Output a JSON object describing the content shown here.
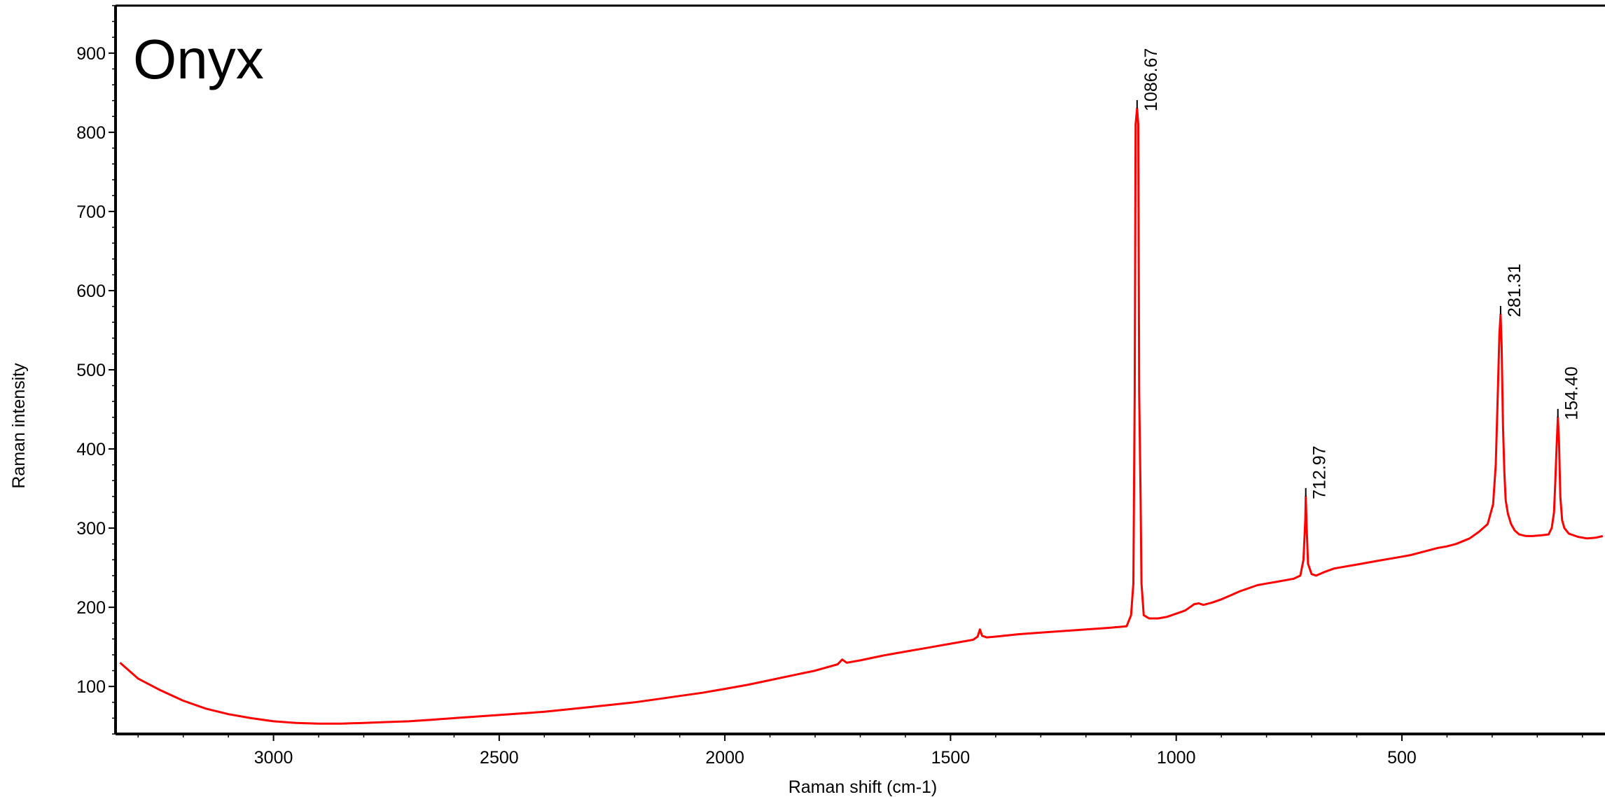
{
  "chart_data": {
    "type": "line",
    "title": "Onyx",
    "xlabel": "Raman shift (cm-1)",
    "ylabel": "Raman intensity",
    "xlim": [
      3350,
      50
    ],
    "ylim": [
      40,
      960
    ],
    "x_reversed": true,
    "grid": false,
    "legend": "none",
    "series_color": "#ff0000",
    "x_ticks": [
      3000,
      2500,
      2000,
      1500,
      1000,
      500
    ],
    "y_ticks": [
      100,
      200,
      300,
      400,
      500,
      600,
      700,
      800,
      900
    ],
    "series": [
      {
        "points": [
          [
            3340,
            130
          ],
          [
            3300,
            110
          ],
          [
            3250,
            95
          ],
          [
            3200,
            82
          ],
          [
            3150,
            72
          ],
          [
            3100,
            65
          ],
          [
            3050,
            60
          ],
          [
            3000,
            56
          ],
          [
            2950,
            54
          ],
          [
            2900,
            53
          ],
          [
            2850,
            53
          ],
          [
            2800,
            54
          ],
          [
            2750,
            55
          ],
          [
            2700,
            56
          ],
          [
            2650,
            58
          ],
          [
            2600,
            60
          ],
          [
            2550,
            62
          ],
          [
            2500,
            64
          ],
          [
            2450,
            66
          ],
          [
            2400,
            68
          ],
          [
            2350,
            71
          ],
          [
            2300,
            74
          ],
          [
            2250,
            77
          ],
          [
            2200,
            80
          ],
          [
            2150,
            84
          ],
          [
            2100,
            88
          ],
          [
            2050,
            92
          ],
          [
            2000,
            97
          ],
          [
            1950,
            102
          ],
          [
            1900,
            108
          ],
          [
            1850,
            114
          ],
          [
            1800,
            120
          ],
          [
            1750,
            128
          ],
          [
            1740,
            134
          ],
          [
            1730,
            130
          ],
          [
            1700,
            133
          ],
          [
            1650,
            139
          ],
          [
            1600,
            144
          ],
          [
            1550,
            149
          ],
          [
            1500,
            154
          ],
          [
            1450,
            159
          ],
          [
            1440,
            163
          ],
          [
            1435,
            172
          ],
          [
            1430,
            164
          ],
          [
            1420,
            162
          ],
          [
            1400,
            163
          ],
          [
            1350,
            166
          ],
          [
            1300,
            168
          ],
          [
            1250,
            170
          ],
          [
            1200,
            172
          ],
          [
            1150,
            174
          ],
          [
            1110,
            176
          ],
          [
            1100,
            190
          ],
          [
            1095,
            230
          ],
          [
            1092,
            470
          ],
          [
            1090,
            810
          ],
          [
            1086.67,
            830
          ],
          [
            1084,
            810
          ],
          [
            1082,
            470
          ],
          [
            1079,
            340
          ],
          [
            1077,
            230
          ],
          [
            1072,
            190
          ],
          [
            1060,
            186
          ],
          [
            1040,
            186
          ],
          [
            1020,
            188
          ],
          [
            1000,
            192
          ],
          [
            980,
            196
          ],
          [
            960,
            204
          ],
          [
            950,
            205
          ],
          [
            940,
            203
          ],
          [
            920,
            206
          ],
          [
            900,
            210
          ],
          [
            880,
            215
          ],
          [
            860,
            220
          ],
          [
            840,
            224
          ],
          [
            820,
            228
          ],
          [
            800,
            230
          ],
          [
            780,
            232
          ],
          [
            760,
            234
          ],
          [
            740,
            236
          ],
          [
            725,
            240
          ],
          [
            718,
            260
          ],
          [
            714,
            310
          ],
          [
            712.97,
            340
          ],
          [
            711,
            300
          ],
          [
            708,
            255
          ],
          [
            700,
            242
          ],
          [
            690,
            240
          ],
          [
            670,
            245
          ],
          [
            650,
            249
          ],
          [
            600,
            254
          ],
          [
            550,
            259
          ],
          [
            500,
            264
          ],
          [
            480,
            266
          ],
          [
            460,
            269
          ],
          [
            420,
            275
          ],
          [
            400,
            277
          ],
          [
            380,
            280
          ],
          [
            350,
            287
          ],
          [
            330,
            295
          ],
          [
            310,
            305
          ],
          [
            298,
            330
          ],
          [
            292,
            380
          ],
          [
            288,
            460
          ],
          [
            284,
            545
          ],
          [
            281.31,
            570
          ],
          [
            279,
            530
          ],
          [
            276,
            430
          ],
          [
            273,
            370
          ],
          [
            270,
            335
          ],
          [
            265,
            318
          ],
          [
            258,
            305
          ],
          [
            250,
            297
          ],
          [
            240,
            292
          ],
          [
            225,
            290
          ],
          [
            210,
            290
          ],
          [
            190,
            291
          ],
          [
            175,
            292
          ],
          [
            168,
            300
          ],
          [
            163,
            320
          ],
          [
            160,
            360
          ],
          [
            157,
            405
          ],
          [
            154.4,
            440
          ],
          [
            152,
            410
          ],
          [
            149,
            340
          ],
          [
            145,
            310
          ],
          [
            140,
            300
          ],
          [
            130,
            293
          ],
          [
            110,
            289
          ],
          [
            90,
            287
          ],
          [
            70,
            288
          ],
          [
            55,
            290
          ]
        ]
      }
    ],
    "peak_labels": [
      {
        "x": 1086.67,
        "y": 830,
        "text": "1086.67"
      },
      {
        "x": 712.97,
        "y": 340,
        "text": "712.97"
      },
      {
        "x": 281.31,
        "y": 570,
        "text": "281.31"
      },
      {
        "x": 154.4,
        "y": 440,
        "text": "154.40"
      }
    ]
  }
}
